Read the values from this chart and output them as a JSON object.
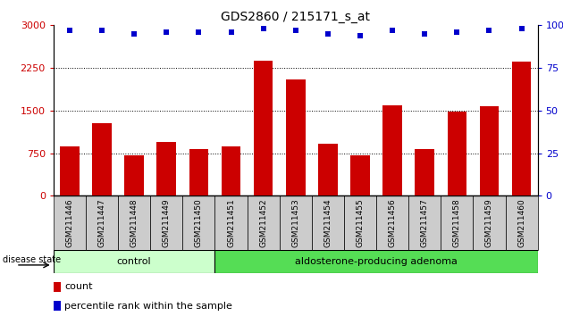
{
  "title": "GDS2860 / 215171_s_at",
  "samples": [
    "GSM211446",
    "GSM211447",
    "GSM211448",
    "GSM211449",
    "GSM211450",
    "GSM211451",
    "GSM211452",
    "GSM211453",
    "GSM211454",
    "GSM211455",
    "GSM211456",
    "GSM211457",
    "GSM211458",
    "GSM211459",
    "GSM211460"
  ],
  "counts": [
    870,
    1280,
    720,
    950,
    830,
    870,
    2380,
    2050,
    920,
    720,
    1600,
    830,
    1480,
    1570,
    2360
  ],
  "percentiles": [
    97,
    97,
    95,
    96,
    96,
    96,
    98,
    97,
    95,
    94,
    97,
    95,
    96,
    97,
    98
  ],
  "control_count": 5,
  "adenoma_count": 10,
  "bar_color": "#cc0000",
  "dot_color": "#0000cc",
  "ylim_left": [
    0,
    3000
  ],
  "ylim_right": [
    0,
    100
  ],
  "yticks_left": [
    0,
    750,
    1500,
    2250,
    3000
  ],
  "yticks_right": [
    0,
    25,
    50,
    75,
    100
  ],
  "grid_values": [
    750,
    1500,
    2250
  ],
  "control_color": "#ccffcc",
  "adenoma_color": "#55dd55",
  "tick_bg_color": "#cccccc",
  "legend_count_color": "#cc0000",
  "legend_pct_color": "#0000cc",
  "disease_state_label": "disease state",
  "control_label": "control",
  "adenoma_label": "aldosterone-producing adenoma",
  "legend_count_label": "count",
  "legend_pct_label": "percentile rank within the sample",
  "bar_width": 0.6
}
